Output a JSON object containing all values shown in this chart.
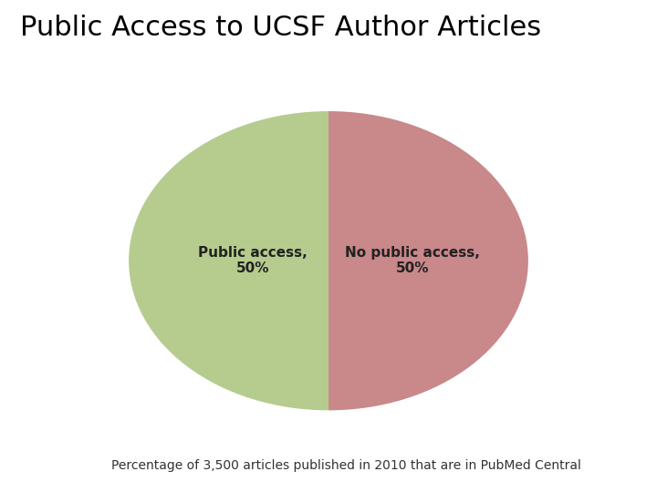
{
  "title": "Public Access to UCSF Author Articles",
  "title_fontsize": 22,
  "slices": [
    50,
    50
  ],
  "labels": [
    "Public access,\n50%",
    "No public access,\n50%"
  ],
  "colors": [
    "#b5cc8e",
    "#c9888a"
  ],
  "subtitle": "Percentage of 3,500 articles published in 2010 that are in PubMed Central",
  "subtitle_fontsize": 10,
  "background_color": "#ffffff",
  "startangle": 90,
  "label_fontsize": 11
}
